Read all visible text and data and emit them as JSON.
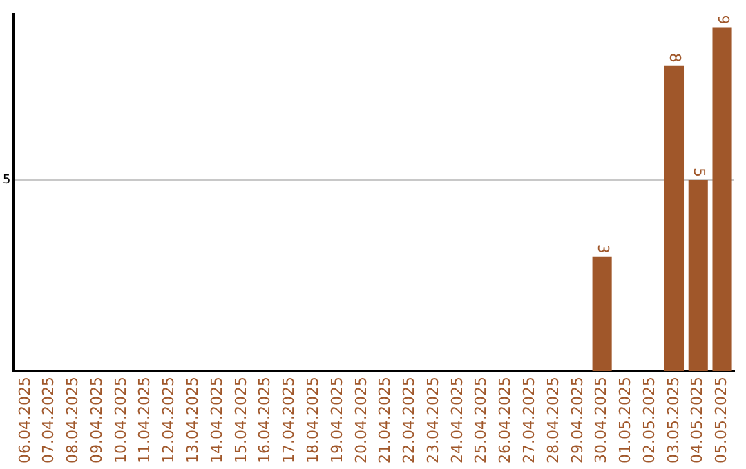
{
  "chart_data": {
    "type": "bar",
    "categories": [
      "06.04.2025",
      "07.04.2025",
      "08.04.2025",
      "09.04.2025",
      "10.04.2025",
      "11.04.2025",
      "12.04.2025",
      "13.04.2025",
      "14.04.2025",
      "15.04.2025",
      "16.04.2025",
      "17.04.2025",
      "18.04.2025",
      "19.04.2025",
      "20.04.2025",
      "21.04.2025",
      "22.04.2025",
      "23.04.2025",
      "24.04.2025",
      "25.04.2025",
      "26.04.2025",
      "27.04.2025",
      "28.04.2025",
      "29.04.2025",
      "30.04.2025",
      "01.05.2025",
      "02.05.2025",
      "03.05.2025",
      "04.05.2025",
      "05.05.2025"
    ],
    "values": [
      null,
      null,
      null,
      null,
      null,
      null,
      null,
      null,
      null,
      null,
      null,
      null,
      null,
      null,
      null,
      null,
      null,
      null,
      null,
      null,
      null,
      null,
      null,
      null,
      3,
      null,
      null,
      8,
      5,
      9
    ],
    "color": "#a0572a",
    "ylim": [
      0,
      9.35
    ],
    "yticks": [
      5
    ],
    "grid": "y",
    "data_labels": true,
    "legend": false
  }
}
